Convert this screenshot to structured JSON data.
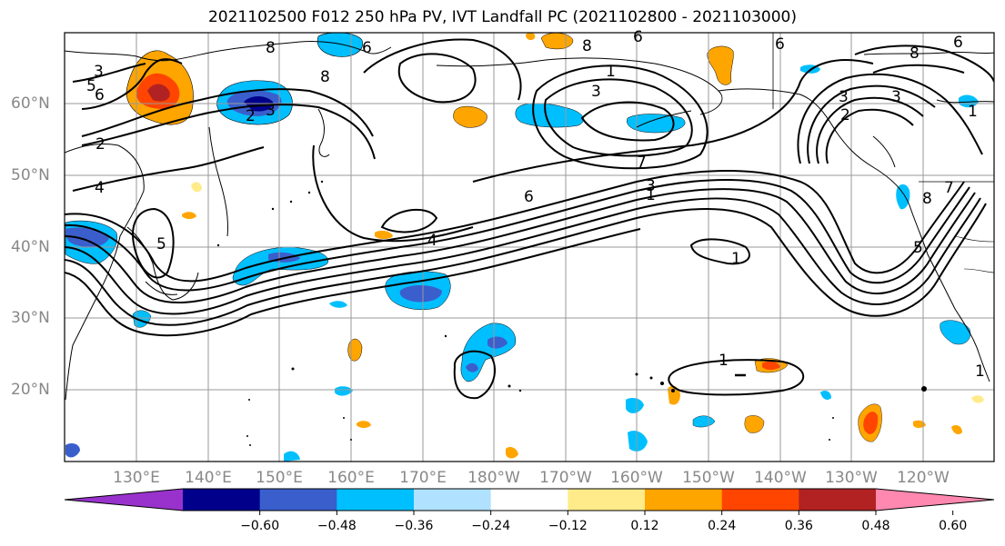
{
  "title": "2021102500 F012 250 hPa PV, IVT Landfall PC (2021102800 - 2021103000)",
  "lat_labels": [
    "60°N",
    "50°N",
    "40°N",
    "30°N",
    "20°N"
  ],
  "lon_labels": [
    "130°E",
    "140°E",
    "150°E",
    "160°E",
    "170°E",
    "180°W",
    "170°W",
    "160°W",
    "150°W",
    "140°W",
    "130°W",
    "120°W"
  ],
  "contour_labels": [
    "3",
    "5",
    "6",
    "2",
    "3",
    "2",
    "4",
    "5",
    "6",
    "8",
    "6",
    "8",
    "6",
    "8",
    "1",
    "3",
    "7",
    "6",
    "3",
    "1",
    "4",
    "1",
    "1",
    "3",
    "3",
    "2",
    "8",
    "6",
    "1",
    "8",
    "5",
    "7",
    "1"
  ],
  "colorbar": {
    "colors": [
      "#9932cc",
      "#00008b",
      "#3a5fcd",
      "#00bfff",
      "#b0e2ff",
      "#ffffff",
      "#ffeb8a",
      "#ffa500",
      "#ff4500",
      "#b22222",
      "#ff88b0"
    ],
    "tick_labels": [
      "−0.60",
      "−0.48",
      "−0.36",
      "−0.24",
      "−0.12",
      "0.12",
      "0.24",
      "0.36",
      "0.48",
      "0.60"
    ]
  },
  "chart_data": {
    "type": "map",
    "title": "2021102500 F012 250 hPa PV, IVT Landfall PC (2021102800 - 2021103000)",
    "field": "250 hPa PV contours with IVT landfall PC shading",
    "lon_range": [
      "125°E",
      "115°W"
    ],
    "lat_range": [
      10,
      70
    ],
    "contour_levels": [
      1,
      2,
      3,
      4,
      5,
      6,
      7,
      8
    ],
    "shading_levels": [
      -0.6,
      -0.48,
      -0.36,
      -0.24,
      -0.12,
      0.12,
      0.24,
      0.36,
      0.48,
      0.6
    ],
    "grid": true
  }
}
